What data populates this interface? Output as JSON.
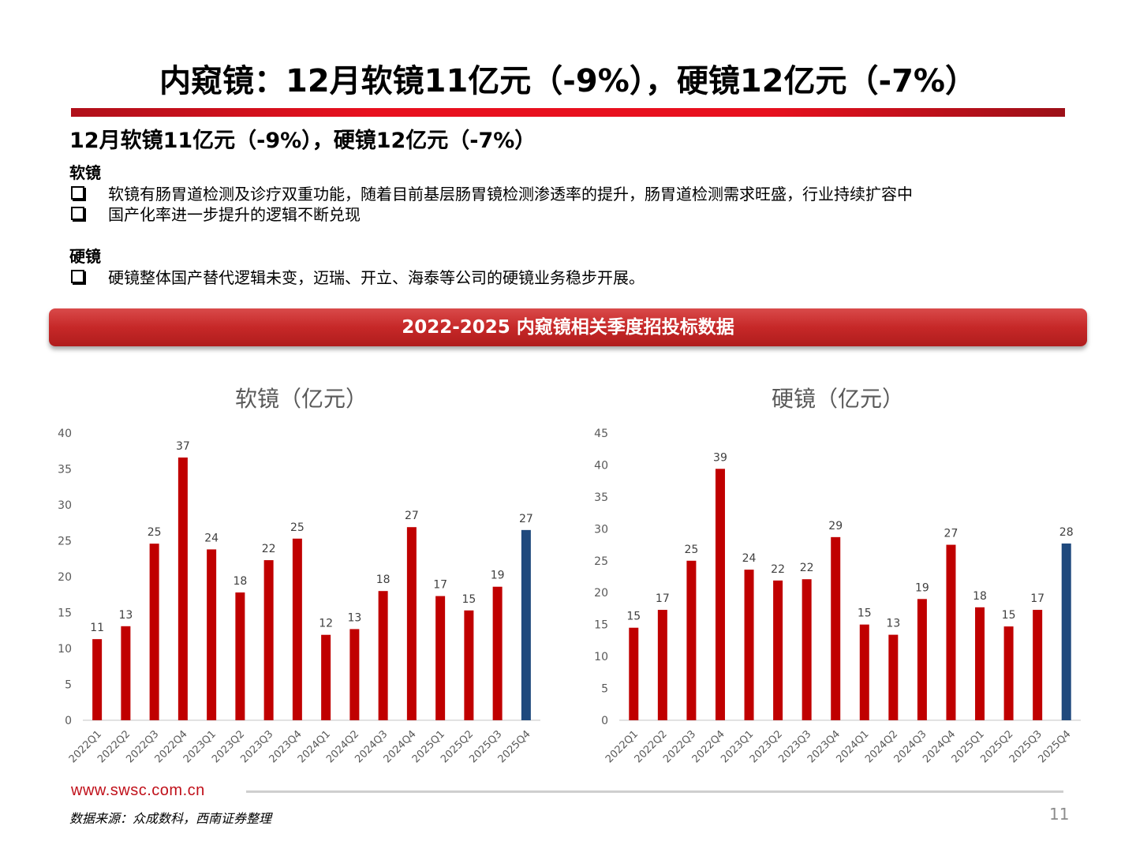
{
  "title": "内窥镜：12月软镜11亿元（-9%），硬镜12亿元（-7%）",
  "subtitle": "12月软镜11亿元（-9%），硬镜12亿元（-7%）",
  "sections": [
    {
      "heading": "软镜",
      "bullets": [
        "软镜有肠胃道检测及诊疗双重功能，随着目前基层肠胃镜检测渗透率的提升，肠胃道检测需求旺盛，行业持续扩容中",
        "国产化率进一步提升的逻辑不断兑现"
      ]
    },
    {
      "heading": "硬镜",
      "bullets": [
        "硬镜整体国产替代逻辑未变，迈瑞、开立、海泰等公司的硬镜业务稳步开展。"
      ]
    }
  ],
  "banner": "2022-2025 内窥镜相关季度招投标数据",
  "colors": {
    "bar": "#c00000",
    "highlight": "#1f497d",
    "accent": "#e8101e"
  },
  "chart_data": [
    {
      "type": "bar",
      "title": "软镜（亿元）",
      "categories": [
        "2022Q1",
        "2022Q2",
        "2022Q3",
        "2022Q4",
        "2023Q1",
        "2023Q2",
        "2023Q3",
        "2023Q4",
        "2024Q1",
        "2024Q2",
        "2024Q3",
        "2024Q4",
        "2025Q1",
        "2025Q2",
        "2025Q3",
        "2025Q4"
      ],
      "values": [
        11.3,
        13.1,
        24.6,
        36.6,
        23.8,
        17.8,
        22.3,
        25.3,
        11.9,
        12.7,
        18.0,
        26.9,
        17.3,
        15.3,
        18.6,
        26.5
      ],
      "labels": [
        "11",
        "13",
        "25",
        "37",
        "24",
        "18",
        "22",
        "25",
        "12",
        "13",
        "18",
        "27",
        "17",
        "15",
        "19",
        "27"
      ],
      "ylim": [
        0,
        40
      ],
      "yticks": [
        0,
        5,
        10,
        15,
        20,
        25,
        30,
        35,
        40
      ],
      "highlight_index": 15
    },
    {
      "type": "bar",
      "title": "硬镜（亿元）",
      "categories": [
        "2022Q1",
        "2022Q2",
        "2022Q3",
        "2022Q4",
        "2023Q1",
        "2023Q2",
        "2023Q3",
        "2023Q4",
        "2024Q1",
        "2024Q2",
        "2024Q3",
        "2024Q4",
        "2025Q1",
        "2025Q2",
        "2025Q3",
        "2025Q4"
      ],
      "values": [
        14.5,
        17.3,
        25.0,
        39.4,
        23.6,
        21.9,
        22.1,
        28.7,
        15.0,
        13.4,
        19.0,
        27.5,
        17.7,
        14.7,
        17.3,
        27.7
      ],
      "labels": [
        "15",
        "17",
        "25",
        "39",
        "24",
        "22",
        "22",
        "29",
        "15",
        "13",
        "19",
        "27",
        "18",
        "15",
        "17",
        "28"
      ],
      "ylim": [
        0,
        45
      ],
      "yticks": [
        0,
        5,
        10,
        15,
        20,
        25,
        30,
        35,
        40,
        45
      ],
      "highlight_index": 15
    }
  ],
  "footer": {
    "url": "www.swsc.com.cn",
    "source": "数据来源：众成数科，西南证券整理",
    "page": "11"
  }
}
